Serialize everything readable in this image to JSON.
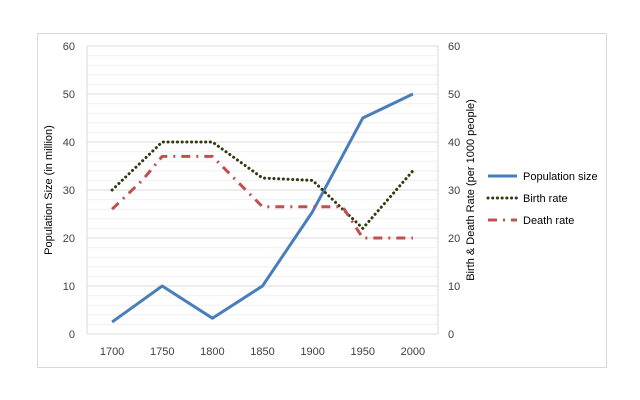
{
  "chart_data": {
    "type": "line",
    "title": "",
    "categories": [
      "1700",
      "1750",
      "1800",
      "1850",
      "1900",
      "1950",
      "2000"
    ],
    "x": [
      1700,
      1750,
      1800,
      1850,
      1900,
      1950,
      2000
    ],
    "ylabel": "Population Size (in million)",
    "y2label": "Birth & Death Rate (per 1000 people)",
    "ylim": [
      0,
      60
    ],
    "y2lim": [
      0,
      60
    ],
    "yticks": [
      "0",
      "10",
      "20",
      "30",
      "40",
      "50",
      "60"
    ],
    "y2ticks": [
      "0",
      "10",
      "20",
      "30",
      "40",
      "50",
      "60"
    ],
    "legend_position": "right",
    "series": [
      {
        "name": "Population size",
        "axis": "left",
        "style": "solid",
        "color": "#4a7ebb",
        "x": [
          1700,
          1750,
          1800,
          1850,
          1900,
          1950,
          2000
        ],
        "values": [
          2.5,
          10,
          3.3,
          10,
          25.5,
          45,
          50
        ]
      },
      {
        "name": "Birth rate",
        "axis": "right",
        "style": "dotted",
        "color": "#2d3b0e",
        "x": [
          1700,
          1750,
          1800,
          1850,
          1900,
          1950,
          2000
        ],
        "values": [
          30,
          40,
          40,
          32.5,
          32,
          22,
          34
        ]
      },
      {
        "name": "Death rate",
        "axis": "right",
        "style": "dashdot",
        "color": "#c0504d",
        "x": [
          1700,
          1730,
          1750,
          1800,
          1850,
          1900,
          1930,
          1950,
          2000
        ],
        "values": [
          26,
          32,
          37,
          37,
          26.5,
          26.5,
          26.5,
          20,
          20
        ]
      }
    ]
  }
}
